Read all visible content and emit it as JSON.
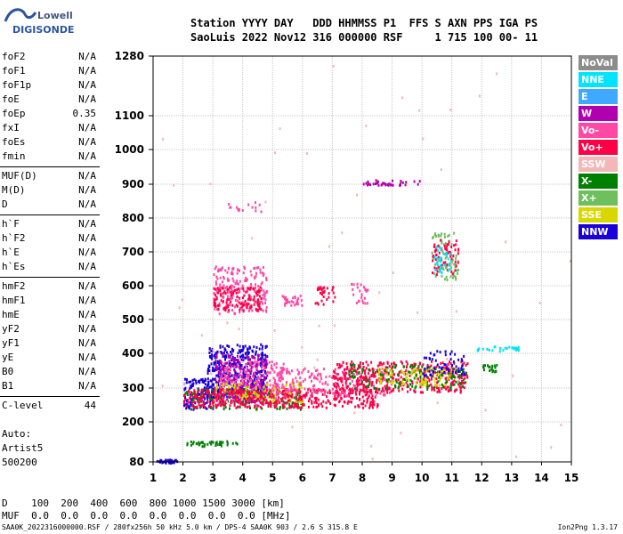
{
  "logo": {
    "brand": "Lowell",
    "product": "DIGISONDE"
  },
  "header": {
    "labels": "Station YYYY DAY   DDD HHMMSS P1  FFS S AXN PPS IGA PS",
    "values": "SaoLuis 2022 Nov12 316 000000 RSF     1 715 100 00- 11"
  },
  "params": [
    [
      {
        "label": "foF2",
        "value": "N/A"
      },
      {
        "label": "foF1",
        "value": "N/A"
      },
      {
        "label": "foF1p",
        "value": "N/A"
      },
      {
        "label": "foE",
        "value": "N/A"
      },
      {
        "label": "foEp",
        "value": "0.35"
      },
      {
        "label": "fxI",
        "value": "N/A"
      },
      {
        "label": "foEs",
        "value": "N/A"
      },
      {
        "label": "fmin",
        "value": "N/A"
      }
    ],
    [
      {
        "label": "MUF(D)",
        "value": "N/A"
      },
      {
        "label": "M(D)",
        "value": "N/A"
      },
      {
        "label": "D",
        "value": "N/A"
      }
    ],
    [
      {
        "label": "h`F",
        "value": "N/A"
      },
      {
        "label": "h`F2",
        "value": "N/A"
      },
      {
        "label": "h`E",
        "value": "N/A"
      },
      {
        "label": "h`Es",
        "value": "N/A"
      }
    ],
    [
      {
        "label": "hmF2",
        "value": "N/A"
      },
      {
        "label": "hmF1",
        "value": "N/A"
      },
      {
        "label": "hmE",
        "value": "N/A"
      },
      {
        "label": "yF2",
        "value": "N/A"
      },
      {
        "label": "yF1",
        "value": "N/A"
      },
      {
        "label": "yE",
        "value": "N/A"
      },
      {
        "label": "B0",
        "value": "N/A"
      },
      {
        "label": "B1",
        "value": "N/A"
      }
    ],
    [
      {
        "label": "C-level",
        "value": "44"
      }
    ]
  ],
  "auto": [
    "Auto:",
    "Artist5",
    "500200"
  ],
  "legend": [
    {
      "label": "NoVal",
      "color": "#8c8c8c"
    },
    {
      "label": "NNE",
      "color": "#00e4ff"
    },
    {
      "label": "E",
      "color": "#3fa9ff"
    },
    {
      "label": "W",
      "color": "#b000b0"
    },
    {
      "label": "Vo-",
      "color": "#ff49a4"
    },
    {
      "label": "Vo+",
      "color": "#ff0046"
    },
    {
      "label": "SSW",
      "color": "#f4b7b7"
    },
    {
      "label": "X-",
      "color": "#008000"
    },
    {
      "label": "X+",
      "color": "#6fbf5f"
    },
    {
      "label": "SSE",
      "color": "#d8d800"
    },
    {
      "label": "NNW",
      "color": "#1a00d8"
    }
  ],
  "bottom": {
    "d_row": "D    100  200  400  600  800 1000 1500 3000 [km]",
    "muf_row": "MUF  0.0  0.0  0.0  0.0  0.0  0.0  0.0  0.0 [MHz]"
  },
  "footer": {
    "text": "SAA0K_2022316000000.RSF / 280fx256h 50 kHz 5.0 km / DPS-4 SAA0K 903 / 2.6 S 315.8 E",
    "version": "Ion2Png 1.3.17"
  },
  "chart_data": {
    "type": "scatter",
    "xlim": [
      1,
      15
    ],
    "ylim": [
      80,
      1280
    ],
    "xticks": [
      1,
      2,
      3,
      4,
      5,
      6,
      7,
      8,
      9,
      10,
      11,
      12,
      13,
      14,
      15
    ],
    "yticks": [
      80,
      200,
      300,
      400,
      500,
      600,
      700,
      800,
      900,
      1000,
      1100,
      1280
    ],
    "grid": true,
    "clusters": [
      {
        "series": "NNW",
        "x": [
          1.1,
          1.8
        ],
        "y": [
          80,
          90
        ],
        "n": 40
      },
      {
        "series": "X-",
        "x": [
          2.1,
          3.8
        ],
        "y": [
          130,
          145
        ],
        "n": 40
      },
      {
        "series": "NNW",
        "x": [
          2.0,
          3.0
        ],
        "y": [
          240,
          330
        ],
        "n": 120
      },
      {
        "series": "NNW",
        "x": [
          2.8,
          4.8
        ],
        "y": [
          270,
          430
        ],
        "n": 420
      },
      {
        "series": "W",
        "x": [
          3.0,
          4.8
        ],
        "y": [
          260,
          400
        ],
        "n": 260
      },
      {
        "series": "Vo-",
        "x": [
          3.2,
          5.5
        ],
        "y": [
          250,
          380
        ],
        "n": 200
      },
      {
        "series": "X-",
        "x": [
          2.0,
          6.0
        ],
        "y": [
          240,
          300
        ],
        "n": 160
      },
      {
        "series": "SSE",
        "x": [
          3.0,
          6.0
        ],
        "y": [
          260,
          320
        ],
        "n": 120
      },
      {
        "series": "Vo+",
        "x": [
          2.0,
          8.5
        ],
        "y": [
          245,
          300
        ],
        "n": 420
      },
      {
        "series": "Vo-",
        "x": [
          5.0,
          9.0
        ],
        "y": [
          280,
          360
        ],
        "n": 220
      },
      {
        "series": "Vo+",
        "x": [
          7.0,
          11.5
        ],
        "y": [
          290,
          380
        ],
        "n": 420
      },
      {
        "series": "X-",
        "x": [
          7.5,
          11.5
        ],
        "y": [
          300,
          370
        ],
        "n": 140
      },
      {
        "series": "SSE",
        "x": [
          8.5,
          11.0
        ],
        "y": [
          310,
          360
        ],
        "n": 80
      },
      {
        "series": "NNW",
        "x": [
          10.0,
          11.4
        ],
        "y": [
          340,
          410
        ],
        "n": 60
      },
      {
        "series": "Vo-",
        "x": [
          3.0,
          4.8
        ],
        "y": [
          520,
          660
        ],
        "n": 200
      },
      {
        "series": "Vo+",
        "x": [
          3.0,
          4.6
        ],
        "y": [
          530,
          600
        ],
        "n": 120
      },
      {
        "series": "Vo-",
        "x": [
          5.3,
          6.0
        ],
        "y": [
          545,
          575
        ],
        "n": 30
      },
      {
        "series": "Vo+",
        "x": [
          6.4,
          7.1
        ],
        "y": [
          545,
          600
        ],
        "n": 30
      },
      {
        "series": "Vo-",
        "x": [
          7.6,
          8.2
        ],
        "y": [
          550,
          610
        ],
        "n": 25
      },
      {
        "series": "X+",
        "x": [
          10.3,
          11.2
        ],
        "y": [
          620,
          760
        ],
        "n": 80
      },
      {
        "series": "Vo+",
        "x": [
          10.3,
          11.2
        ],
        "y": [
          630,
          740
        ],
        "n": 60
      },
      {
        "series": "NNE",
        "x": [
          10.4,
          11.0
        ],
        "y": [
          640,
          720
        ],
        "n": 30
      },
      {
        "series": "W",
        "x": [
          8.0,
          10.0
        ],
        "y": [
          900,
          915
        ],
        "n": 40
      },
      {
        "series": "NNE",
        "x": [
          11.8,
          13.3
        ],
        "y": [
          410,
          425
        ],
        "n": 30
      },
      {
        "series": "X-",
        "x": [
          12.0,
          12.5
        ],
        "y": [
          350,
          370
        ],
        "n": 20
      },
      {
        "series": "Vo-",
        "x": [
          3.5,
          4.8
        ],
        "y": [
          820,
          850
        ],
        "n": 15
      },
      {
        "series": "SSW",
        "x": [
          1.0,
          15.0
        ],
        "y": [
          80,
          1280
        ],
        "n": 60
      }
    ]
  }
}
